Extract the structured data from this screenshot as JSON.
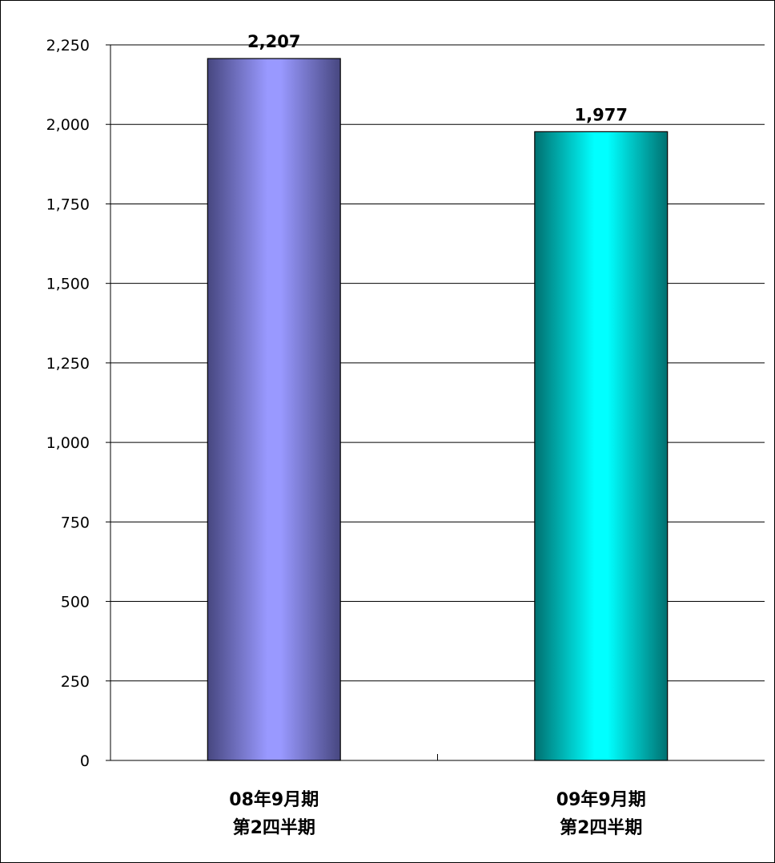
{
  "chart_data": {
    "type": "bar",
    "categories": [
      [
        "08年9月期",
        "第2四半期"
      ],
      [
        "09年9月期",
        "第2四半期"
      ]
    ],
    "values": [
      2207,
      1977
    ],
    "value_labels": [
      "2,207",
      "1,977"
    ],
    "ylim": [
      0,
      2250
    ],
    "yticks": [
      0,
      250,
      500,
      750,
      1000,
      1250,
      1500,
      1750,
      2000,
      2250
    ],
    "ytick_labels": [
      "0",
      "250",
      "500",
      "750",
      "1,000",
      "1,250",
      "1,500",
      "1,750",
      "2,000",
      "2,250"
    ],
    "grid": true,
    "legend": "none",
    "bar_colors": [
      {
        "edge": "#474780",
        "center": "#9999ff"
      },
      {
        "edge": "#007070",
        "center": "#00ffff"
      }
    ],
    "title": "",
    "xlabel": "",
    "ylabel": ""
  }
}
